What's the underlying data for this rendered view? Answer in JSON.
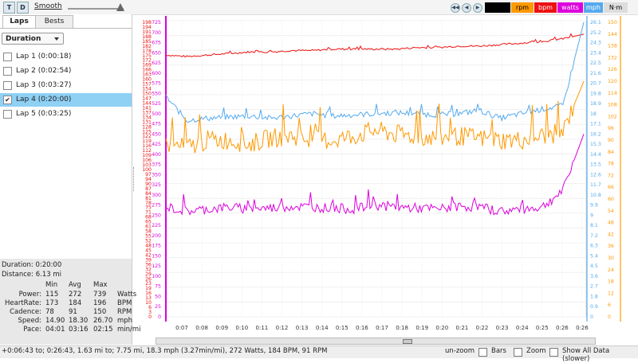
{
  "toolbar": {
    "t_label": "T",
    "d_label": "D",
    "smooth_label": "Smooth",
    "nav_buttons": [
      "◀◀",
      "◀",
      "▶",
      "▶▶"
    ],
    "legend": [
      {
        "label": "",
        "bg": "#000000",
        "fg": "#ffffff"
      },
      {
        "label": "rpm",
        "bg": "#ff9900",
        "fg": "#000000"
      },
      {
        "label": "bpm",
        "bg": "#ee1111",
        "fg": "#ffffff"
      },
      {
        "label": "watts",
        "bg": "#dd00dd",
        "fg": "#ffffff"
      },
      {
        "label": "mph",
        "bg": "#55aaee",
        "fg": "#ffffff"
      },
      {
        "label": "N·m",
        "bg": "#dddddd",
        "fg": "#000000"
      }
    ]
  },
  "sidebar": {
    "tabs": [
      "Laps",
      "Bests"
    ],
    "dropdown_value": "Duration",
    "laps": [
      {
        "label": "Lap 1 (0:00:18)",
        "checked": false
      },
      {
        "label": "Lap 2 (0:02:54)",
        "checked": false
      },
      {
        "label": "Lap 3 (0:03:27)",
        "checked": false
      },
      {
        "label": "Lap 4 (0:20:00)",
        "checked": true
      },
      {
        "label": "Lap 5 (0:03:25)",
        "checked": false
      }
    ],
    "summary": {
      "duration": "Duration: 0:20:00",
      "distance": "Distance: 6.13 mi",
      "headers": [
        "Min",
        "Avg",
        "Max"
      ],
      "rows": [
        {
          "name": "Power:",
          "min": "115",
          "avg": "272",
          "max": "739",
          "unit": "Watts"
        },
        {
          "name": "HeartRate:",
          "min": "173",
          "avg": "184",
          "max": "196",
          "unit": "BPM"
        },
        {
          "name": "Cadence:",
          "min": "78",
          "avg": "91",
          "max": "150",
          "unit": "RPM"
        },
        {
          "name": "Speed:",
          "min": "14.90",
          "avg": "18.30",
          "max": "26.70",
          "unit": "mph"
        },
        {
          "name": "Pace:",
          "min": "04:01",
          "avg": "03:16",
          "max": "02:15",
          "unit": "min/mi"
        }
      ]
    }
  },
  "chart_data": {
    "type": "line",
    "x_ticks": [
      "0:07",
      "0:08",
      "0:09",
      "0:10",
      "0:11",
      "0:12",
      "0:13",
      "0:14",
      "0:15",
      "0:16",
      "0:17",
      "0:18",
      "0:19",
      "0:20",
      "0:21",
      "0:22",
      "0:23",
      "0:24",
      "0:25",
      "0:26",
      "0:26"
    ],
    "axes": {
      "bpm": {
        "color": "#ee1111",
        "ticks": [
          "0",
          "3",
          "6",
          "10",
          "13",
          "16",
          "19",
          "23",
          "26",
          "29",
          "32",
          "36",
          "39",
          "42",
          "45",
          "48",
          "52",
          "55",
          "58",
          "61",
          "65",
          "68",
          "71",
          "75",
          "78",
          "81",
          "84",
          "87",
          "90",
          "94",
          "97",
          "100",
          "103",
          "106",
          "109",
          "112",
          "116",
          "119",
          "122",
          "125",
          "128",
          "131",
          "134",
          "137",
          "141",
          "144",
          "147",
          "150",
          "154",
          "157",
          "160",
          "163",
          "166",
          "169",
          "172",
          "175",
          "178",
          "182",
          "185",
          "188",
          "191",
          "194",
          "198"
        ]
      },
      "watts": {
        "color": "#dd00dd",
        "ticks": [
          "0",
          "25",
          "50",
          "75",
          "100",
          "125",
          "150",
          "175",
          "200",
          "225",
          "250",
          "275",
          "300",
          "325",
          "350",
          "375",
          "400",
          "425",
          "450",
          "475",
          "500",
          "525",
          "550",
          "575",
          "600",
          "625",
          "650",
          "675",
          "700",
          "725"
        ]
      },
      "mph": {
        "color": "#55aaee",
        "ticks": [
          "0",
          "0.9",
          "1.8",
          "2.7",
          "3.6",
          "4.5",
          "5.4",
          "6.3",
          "7.2",
          "8.1",
          "9",
          "9.9",
          "10.8",
          "11.7",
          "12.6",
          "13.5",
          "14.4",
          "15.3",
          "16.2",
          "17.1",
          "18",
          "18.9",
          "19.8",
          "20.7",
          "21.6",
          "22.5",
          "23.4",
          "24.3",
          "25.2",
          "26.1"
        ]
      },
      "rpm": {
        "color": "#ff9900",
        "ticks": [
          "0",
          "6",
          "12",
          "18",
          "24",
          "30",
          "36",
          "42",
          "48",
          "54",
          "60",
          "66",
          "72",
          "78",
          "84",
          "90",
          "96",
          "102",
          "108",
          "114",
          "120",
          "126",
          "132",
          "138",
          "144",
          "150"
        ]
      }
    },
    "series": [
      {
        "name": "bpm",
        "color": "#ee1111",
        "values": [
          176,
          175,
          176,
          177,
          178,
          178,
          179,
          179,
          180,
          180,
          180,
          180,
          181,
          181,
          182,
          182,
          183,
          184,
          185,
          187,
          190
        ]
      },
      {
        "name": "mph",
        "color": "#55aaee",
        "values": [
          19.5,
          17.4,
          17.6,
          17.7,
          17.8,
          17.6,
          17.8,
          18.0,
          17.8,
          17.9,
          18.0,
          18.1,
          18.0,
          17.9,
          18.0,
          18.3,
          17.6,
          18.0,
          18.4,
          18.7,
          26.1
        ]
      },
      {
        "name": "rpm",
        "color": "#ff9900",
        "values": [
          88,
          86,
          90,
          90,
          88,
          91,
          92,
          90,
          90,
          92,
          95,
          93,
          92,
          91,
          92,
          91,
          90,
          90,
          92,
          94,
          120
        ]
      },
      {
        "name": "watts",
        "color": "#dd00dd",
        "values": [
          270,
          260,
          265,
          270,
          265,
          268,
          272,
          270,
          268,
          265,
          275,
          270,
          268,
          265,
          272,
          270,
          260,
          265,
          270,
          310,
          450
        ]
      }
    ]
  },
  "footer": {
    "status": "+0:06:43 to; 0:26:43, 1.63 mi to; 7.75 mi, 18.3 mph (3.27min/mi), 272 Watts, 184 BPM, 91 RPM",
    "unzoom": "un-zoom",
    "bars": "Bars",
    "zoom": "Zoom",
    "show_all": "Show All Data (slower)"
  }
}
